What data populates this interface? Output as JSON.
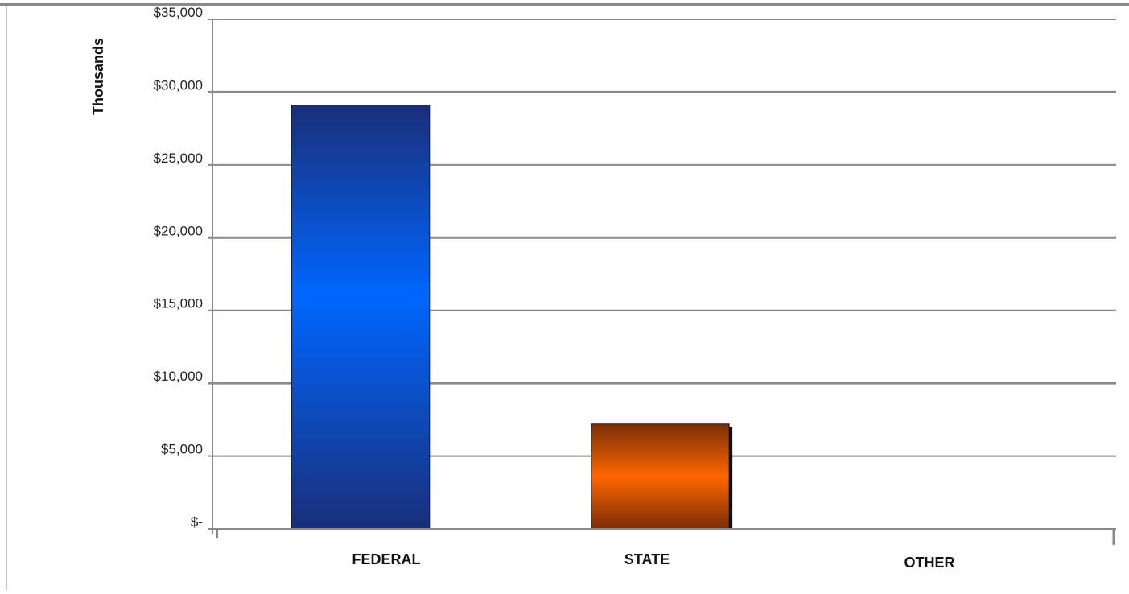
{
  "chart_data": {
    "type": "bar",
    "title": "",
    "xlabel": "",
    "ylabel": "Thousands",
    "categories": [
      "FEDERAL",
      "STATE",
      "OTHER"
    ],
    "values": [
      29100,
      7200,
      0
    ],
    "ylim": [
      0,
      35000
    ],
    "yticks": [
      0,
      5000,
      10000,
      15000,
      20000,
      25000,
      30000,
      35000
    ],
    "ytick_labels": [
      "$-",
      "$5,000",
      "$10,000",
      "$15,000",
      "$20,000",
      "$25,000",
      "$30,000",
      "$35,000"
    ],
    "grid": true,
    "legend": "none",
    "colors": {
      "federal_light": "#0066ff",
      "federal_dark": "#1a2f7a",
      "state_light": "#ff6600",
      "state_dark": "#7a2e06",
      "gridline": "#8a8a8a"
    }
  }
}
